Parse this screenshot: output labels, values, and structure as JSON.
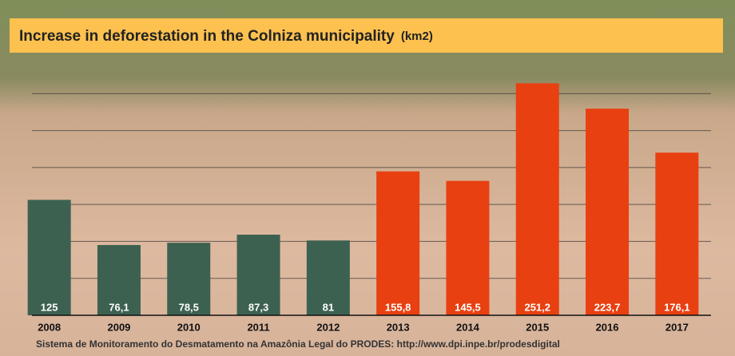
{
  "chart_data": {
    "type": "bar",
    "title": "Increase in deforestation in the Colniza municipality",
    "unit": "(km2)",
    "source": "Sistema de Monitoramento do Desmatamento na Amazônia Legal do  PRODES: http://www.dpi.inpe.br/prodesdigital",
    "categories": [
      "2008",
      "2009",
      "2010",
      "2011",
      "2012",
      "2013",
      "2014",
      "2015",
      "2016",
      "2017"
    ],
    "values": [
      125,
      76.1,
      78.5,
      87.3,
      81,
      155.8,
      145.5,
      251.2,
      223.7,
      176.1
    ],
    "value_labels": [
      "125",
      "76,1",
      "78,5",
      "87,3",
      "81",
      "155,8",
      "145,5",
      "251,2",
      "223,7",
      "176,1"
    ],
    "colors": [
      "#3d6150",
      "#3d6150",
      "#3d6150",
      "#3d6150",
      "#3d6150",
      "#e84011",
      "#e84011",
      "#e84011",
      "#e84011",
      "#e84011"
    ],
    "ylim": [
      0,
      280
    ],
    "yticks": [
      40,
      80,
      120,
      160,
      200,
      240
    ],
    "grid": true
  }
}
